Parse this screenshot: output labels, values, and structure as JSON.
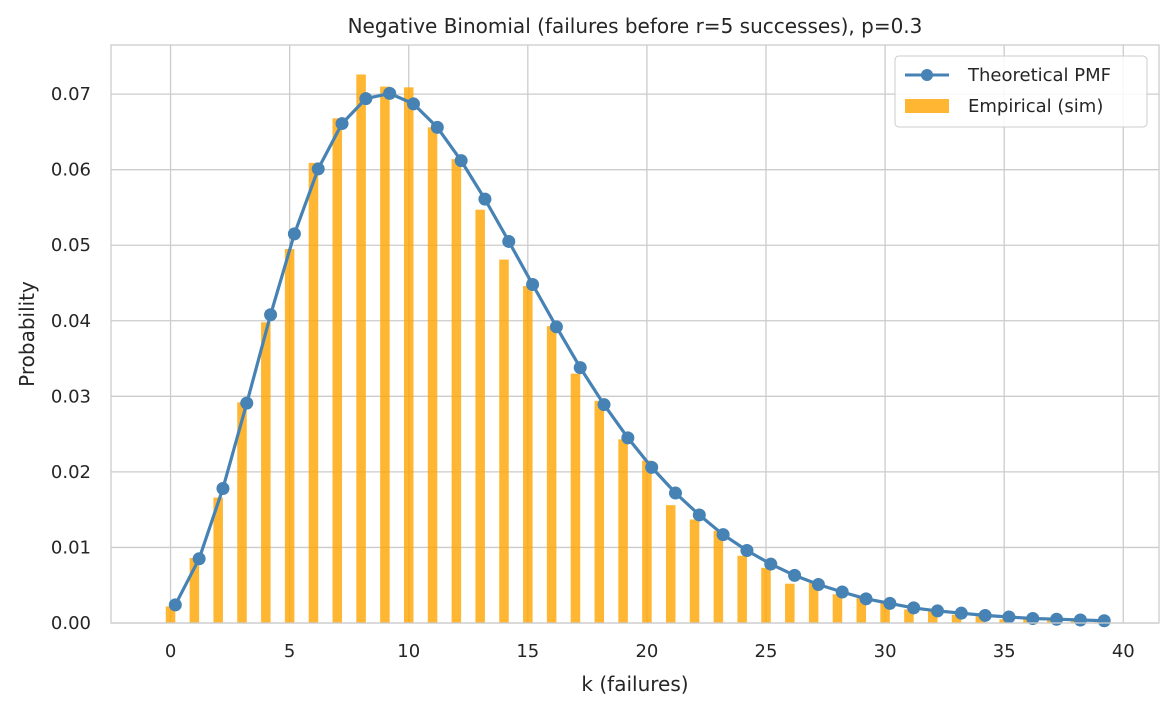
{
  "chart_data": {
    "type": "bar",
    "title": "Negative Binomial (failures before r=5 successes), p=0.3",
    "xlabel": "k (failures)",
    "ylabel": "Probability",
    "xlim": [
      -2.5,
      41.5
    ],
    "ylim": [
      0,
      0.0765
    ],
    "xticks": [
      0,
      5,
      10,
      15,
      20,
      25,
      30,
      35,
      40
    ],
    "xtick_labels": [
      "0",
      "5",
      "10",
      "15",
      "20",
      "25",
      "30",
      "35",
      "40"
    ],
    "yticks": [
      0,
      0.01,
      0.02,
      0.03,
      0.04,
      0.05,
      0.06,
      0.07
    ],
    "ytick_labels": [
      "0.00",
      "0.01",
      "0.02",
      "0.03",
      "0.04",
      "0.05",
      "0.06",
      "0.07"
    ],
    "grid": true,
    "legend_position": "top-right",
    "x": [
      0,
      1,
      2,
      3,
      4,
      5,
      6,
      7,
      8,
      9,
      10,
      11,
      12,
      13,
      14,
      15,
      16,
      17,
      18,
      19,
      20,
      21,
      22,
      23,
      24,
      25,
      26,
      27,
      28,
      29,
      30,
      31,
      32,
      33,
      34,
      35,
      36,
      37,
      38,
      39
    ],
    "series": [
      {
        "name": "Theoretical PMF",
        "kind": "line-markers",
        "color": "#4682b4",
        "values": [
          0.0024,
          0.0085,
          0.0178,
          0.0291,
          0.0408,
          0.0515,
          0.0601,
          0.0661,
          0.0694,
          0.0701,
          0.0687,
          0.0656,
          0.0612,
          0.0561,
          0.0505,
          0.0448,
          0.0392,
          0.0338,
          0.0289,
          0.0245,
          0.0206,
          0.0172,
          0.0143,
          0.0117,
          0.0096,
          0.0078,
          0.0063,
          0.0051,
          0.0041,
          0.0032,
          0.0026,
          0.002,
          0.0016,
          0.0013,
          0.001,
          0.0008,
          0.0006,
          0.0005,
          0.0004,
          0.0003
        ]
      },
      {
        "name": "Empirical (sim)",
        "kind": "bar",
        "color": "#ffa500",
        "values": [
          0.0022,
          0.0086,
          0.0166,
          0.0292,
          0.0398,
          0.0495,
          0.0609,
          0.0668,
          0.0726,
          0.071,
          0.0709,
          0.0656,
          0.0614,
          0.0547,
          0.0481,
          0.0446,
          0.0393,
          0.033,
          0.0294,
          0.0243,
          0.0215,
          0.0156,
          0.0137,
          0.0122,
          0.0089,
          0.0073,
          0.0052,
          0.0053,
          0.0038,
          0.0033,
          0.0027,
          0.0018,
          0.0016,
          0.0011,
          0.0009,
          0.0005,
          0.0005,
          0.0004,
          0.0003,
          0.0002
        ]
      }
    ]
  }
}
